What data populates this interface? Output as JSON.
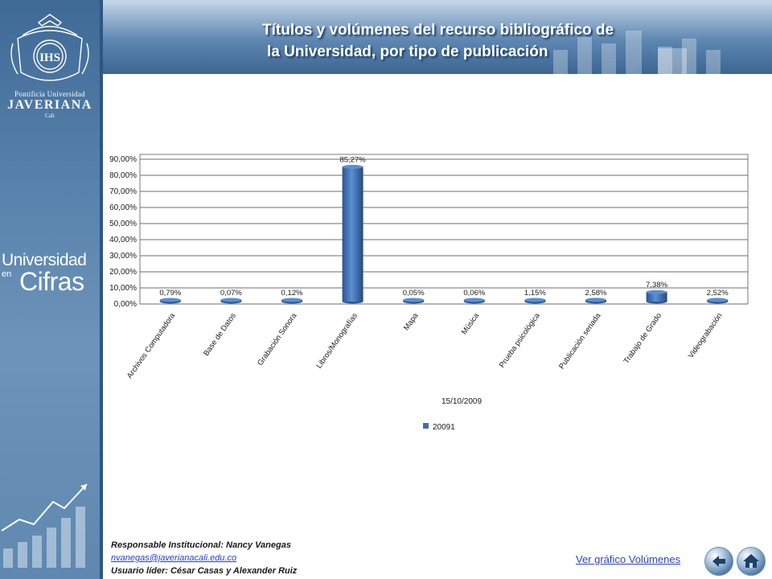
{
  "title": {
    "line1": "Títulos y volúmenes del recurso bibliográfico de",
    "line2": "la Universidad, por tipo de publicación"
  },
  "sidebar": {
    "crest_monogram": "IHS",
    "uni_line1": "Pontificia Universidad",
    "uni_line2": "JAVERIANA",
    "uni_line3": "Cali",
    "brand_line1": "Universidad",
    "brand_line2": "en",
    "brand_line3": "Cifras"
  },
  "chart_data": {
    "type": "bar",
    "categories": [
      "Archivos Computadora",
      "Base de Datos",
      "Grabación Sonora",
      "Libros/Monografías",
      "Mapa",
      "Música",
      "Prueba psicológica",
      "Publicación seriada",
      "Trabajo de Grado",
      "Videograbación"
    ],
    "series": [
      {
        "name": "20091",
        "values": [
          0.79,
          0.07,
          0.12,
          85.27,
          0.05,
          0.06,
          1.15,
          2.58,
          7.38,
          2.52
        ]
      }
    ],
    "data_labels": [
      "0,79%",
      "0,07%",
      "0,12%",
      "85,27%",
      "0,05%",
      "0,06%",
      "1,15%",
      "2,58%",
      "7,38%",
      "2,52%"
    ],
    "y_ticks": [
      "0,00%",
      "10,00%",
      "20,00%",
      "30,00%",
      "40,00%",
      "50,00%",
      "60,00%",
      "70,00%",
      "80,00%",
      "90,00%"
    ],
    "ylim": [
      0,
      90
    ],
    "xlabel": "15/10/2009",
    "ylabel": "",
    "grid": true,
    "legend": "bottom",
    "bar_color": "#3d6eb4"
  },
  "footer": {
    "responsible": "Responsable Institucional: Nancy Vanegas",
    "email": "nvanegas@javerianacali.edu.co",
    "users": "Usuario líder: César Casas y Alexander Ruiz"
  },
  "nav": {
    "volumes_link": "Ver gráfico Volúmenes",
    "back_icon": "back-arrow-icon",
    "home_icon": "home-icon"
  },
  "colors": {
    "sidebar": "#5a84ad",
    "header": "#5d86b1",
    "accent": "#3d6eb4"
  }
}
